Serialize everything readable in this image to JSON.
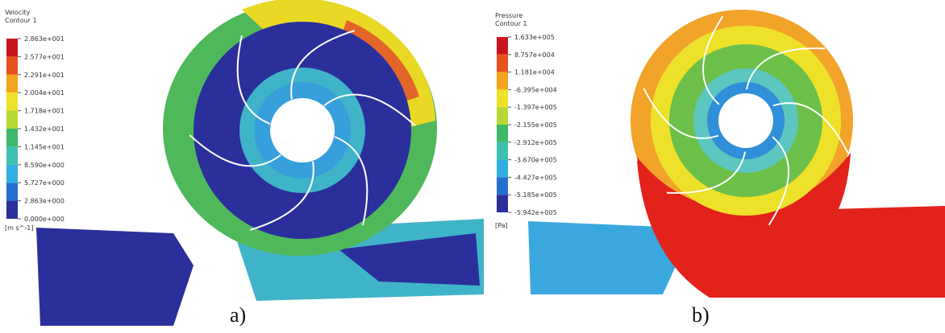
{
  "panels": [
    {
      "legend": {
        "title": "Velocity",
        "subtitle": "Contour 1",
        "ticks": [
          "2.863e+001",
          "2.577e+001",
          "2.291e+001",
          "2.004e+001",
          "1.718e+001",
          "1.432e+001",
          "1.145e+001",
          "8.590e+000",
          "5.727e+000",
          "2.863e+000",
          "0.000e+000"
        ],
        "unit": "[m s^-1]"
      },
      "label": "a)"
    },
    {
      "legend": {
        "title": "Pressure",
        "subtitle": "Contour 1",
        "ticks": [
          "1.633e+005",
          "8.757e+004",
          "1.181e+004",
          "-6.395e+004",
          "-1.397e+005",
          "-2.155e+005",
          "-2.912e+005",
          "-3.670e+005",
          "-4.427e+005",
          "-5.185e+005",
          "-5.942e+005"
        ],
        "unit": "[Pa]"
      },
      "label": "b)"
    }
  ]
}
